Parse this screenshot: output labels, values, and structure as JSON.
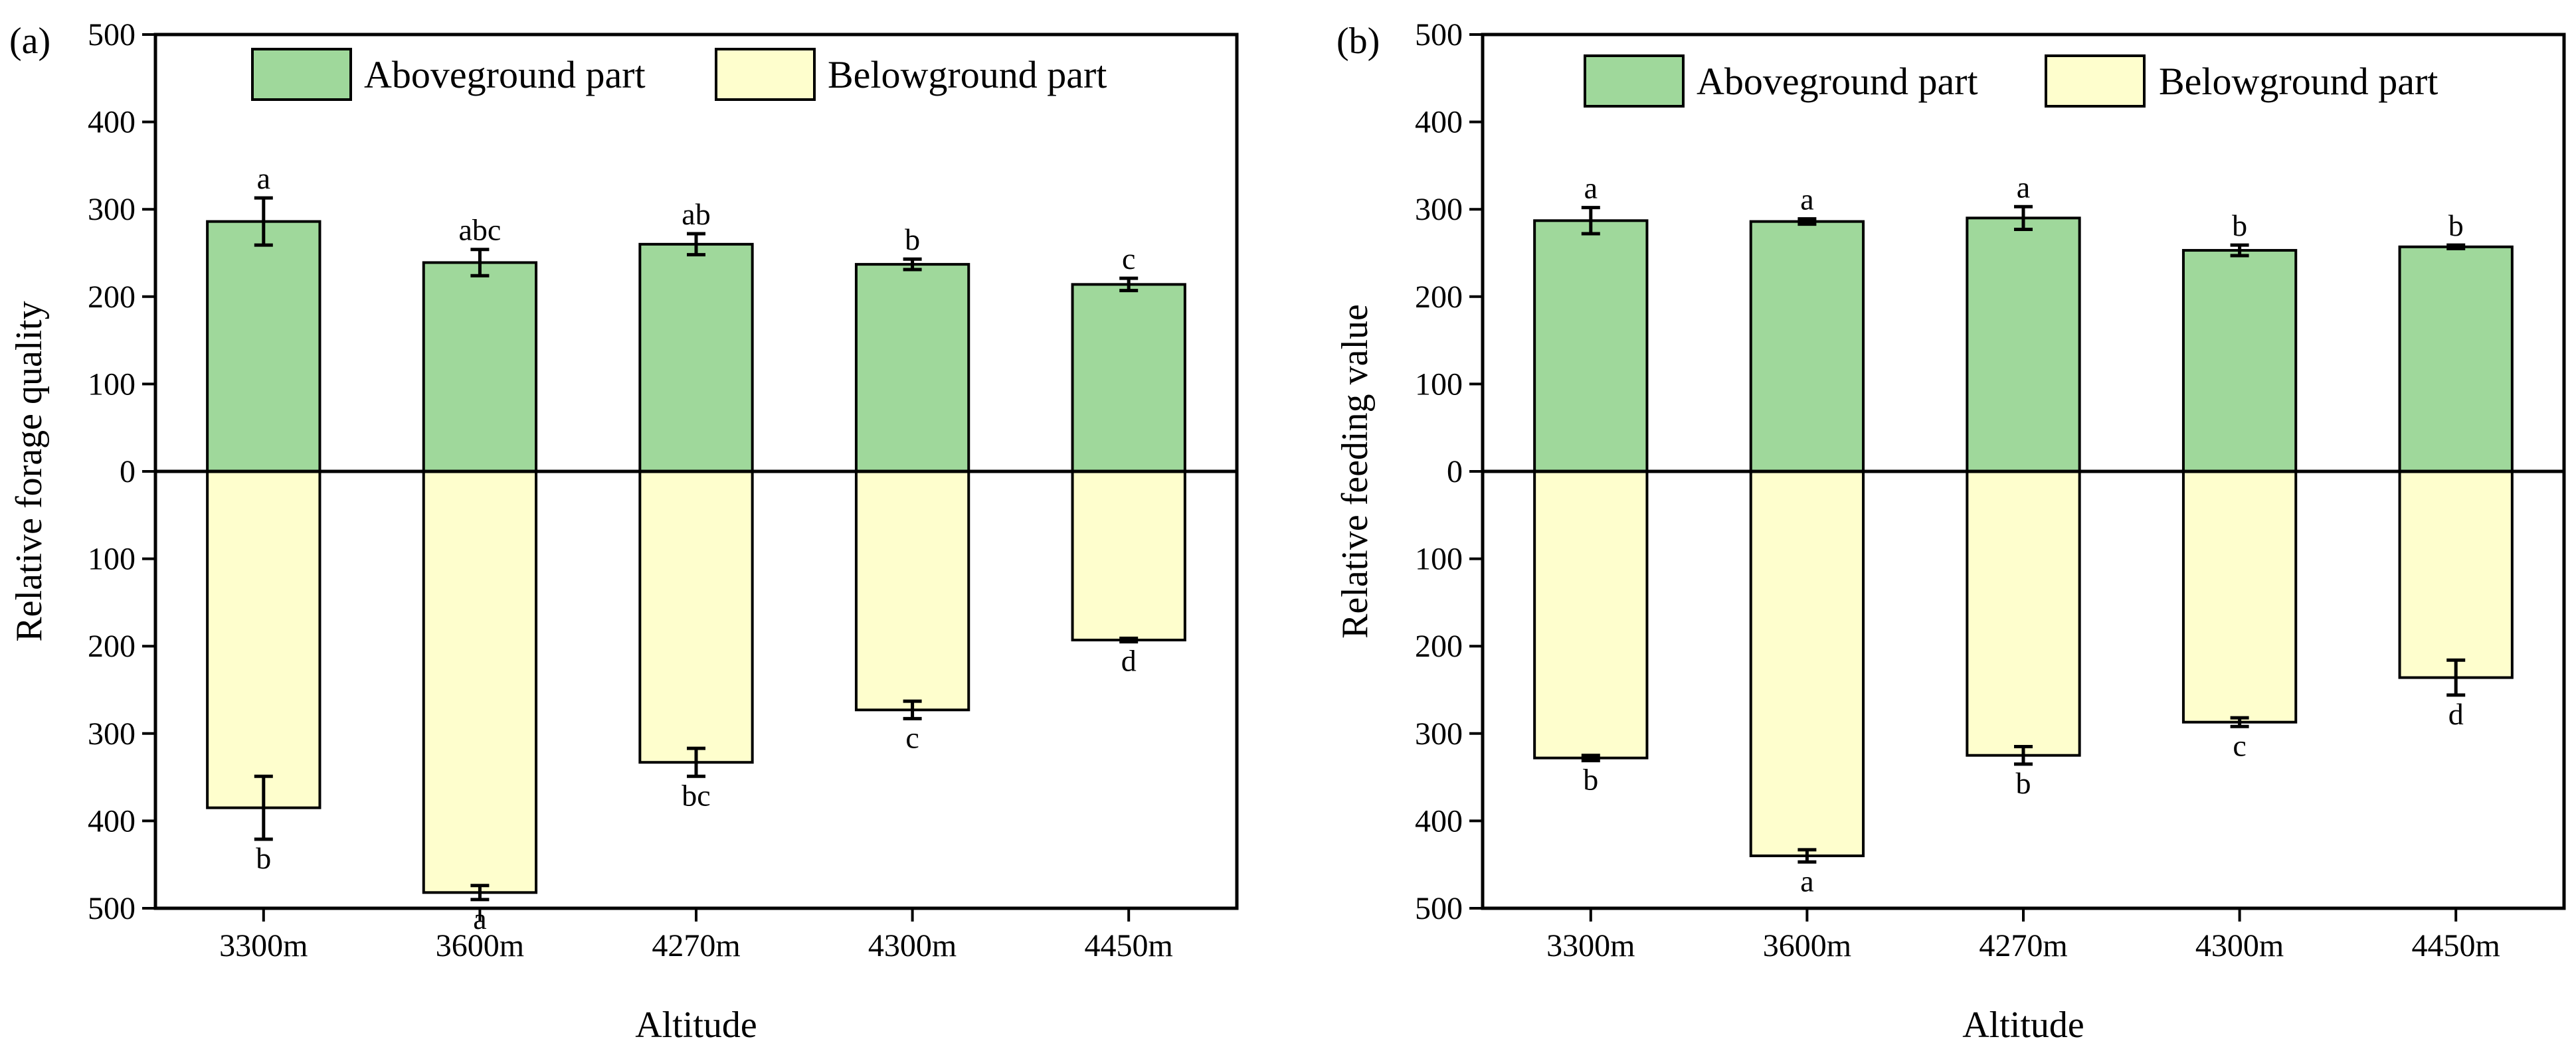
{
  "chart_data": [
    {
      "type": "bar",
      "panel_label": "(a)",
      "title": "",
      "xlabel": "Altitude",
      "ylabel": "Relative forage quality",
      "categories": [
        "3300m",
        "3600m",
        "4270m",
        "4300m",
        "4450m"
      ],
      "ylim": [
        -500,
        500
      ],
      "yticks": [
        500,
        400,
        300,
        200,
        100,
        0,
        100,
        200,
        300,
        400,
        500
      ],
      "series": [
        {
          "name": "Aboveground part",
          "color": "#9fd89b",
          "values": [
            286,
            239,
            260,
            237,
            214
          ],
          "errors": [
            27,
            15,
            12,
            6,
            7
          ],
          "sig": [
            "a",
            "abc",
            "ab",
            "b",
            "c"
          ]
        },
        {
          "name": "Belowground part",
          "color": "#fefecd",
          "values": [
            -385,
            -482,
            -333,
            -273,
            -193
          ],
          "errors": [
            36,
            8,
            16,
            10,
            2
          ],
          "sig": [
            "b",
            "a",
            "bc",
            "c",
            "d"
          ]
        }
      ],
      "legend": [
        "Aboveground part",
        "Belowground part"
      ],
      "legend_position": "top-center"
    },
    {
      "type": "bar",
      "panel_label": "(b)",
      "title": "",
      "xlabel": "Altitude",
      "ylabel": "Relative feeding value",
      "categories": [
        "3300m",
        "3600m",
        "4270m",
        "4300m",
        "4450m"
      ],
      "ylim": [
        -500,
        500
      ],
      "yticks": [
        500,
        400,
        300,
        200,
        100,
        0,
        100,
        200,
        300,
        400,
        500
      ],
      "series": [
        {
          "name": "Aboveground part",
          "color": "#9fd89b",
          "values": [
            287,
            286,
            290,
            253,
            257
          ],
          "errors": [
            15,
            3,
            13,
            6,
            2
          ],
          "sig": [
            "a",
            "a",
            "a",
            "b",
            "b"
          ]
        },
        {
          "name": "Belowground part",
          "color": "#fefecd",
          "values": [
            -328,
            -440,
            -325,
            -287,
            -236
          ],
          "errors": [
            3,
            7,
            10,
            5,
            20
          ],
          "sig": [
            "b",
            "a",
            "b",
            "c",
            "d"
          ]
        }
      ],
      "legend": [
        "Aboveground part",
        "Belowground part"
      ],
      "legend_position": "top-center"
    }
  ]
}
